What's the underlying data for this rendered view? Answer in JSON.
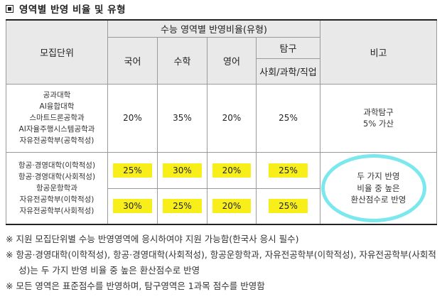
{
  "title": "영역별 반영 비율 및 유형",
  "header": {
    "unit": "모집단위",
    "exam": "수능 영역별 반영비율(유형)",
    "korean": "국어",
    "math": "수학",
    "english": "영어",
    "inquiry": "탐구",
    "inquiry_sub": "사회/과학/직업",
    "remark": "비고"
  },
  "rows": [
    {
      "units": [
        "공과대학",
        "AI융합대학",
        "스마트드론공학과",
        "AI자율주행시스템공학과",
        "자유전공학부(공학적성)"
      ],
      "korean": "20%",
      "math": "35%",
      "english": "20%",
      "inquiry": "25%",
      "remark": [
        "과학탐구",
        "5% 가산"
      ]
    },
    {
      "units_a": [
        "항공·경영대학(이학적성)",
        "항공·경영대학(사회적성)",
        "항공운항학과"
      ],
      "units_b": [
        "자유전공학부(이학적성)",
        "자유전공학부(사회적성)"
      ],
      "row1": {
        "korean": "25%",
        "math": "30%",
        "english": "20%",
        "inquiry": "25%"
      },
      "row2": {
        "korean": "30%",
        "math": "25%",
        "english": "20%",
        "inquiry": "25%"
      },
      "remark": [
        "두 가지 반영",
        "비율 중 높은",
        "환산점수로 반영"
      ]
    }
  ],
  "footnotes": [
    "※ 지원 모집단위별 수능 반영영역에 응시하여야 지원 가능함(한국사 응시 필수)",
    "※ 항공·경영대학(이학적성), 항공·경영대학(사회적성), 항공운항학과, 자유전공학부(이학적성), 자유전공학부(사회적성)는 두 가지 반영 비율 중 높은 환산점수로 반영",
    "※ 모든 영역은 표준점수를 반영하며, 탐구영역은 1과목 점수를 반영함"
  ],
  "colors": {
    "highlight": "#f7ee1a",
    "circle": "#6de6ec",
    "header_bg": "#e9e9e9"
  }
}
